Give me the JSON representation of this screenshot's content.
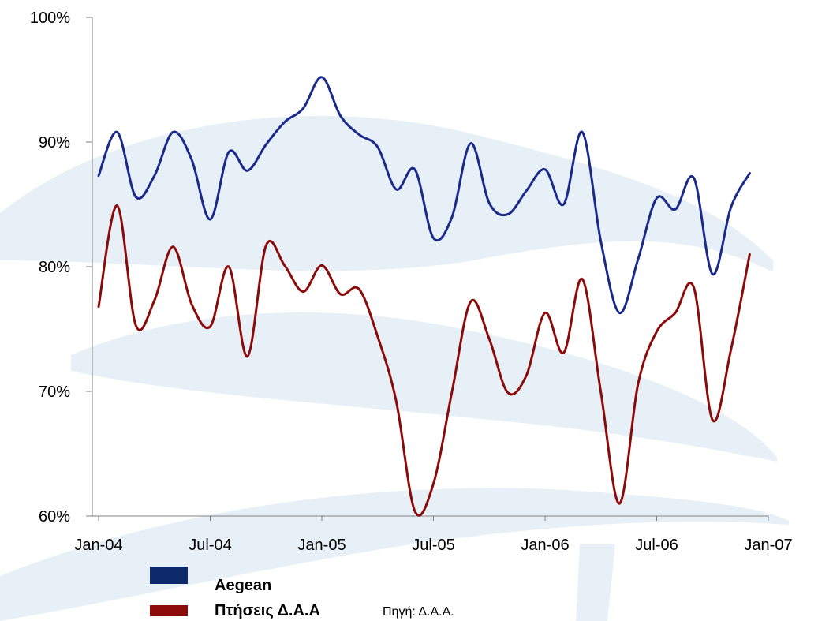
{
  "chart_data": {
    "type": "line",
    "x": [
      "Jan-04",
      "Feb-04",
      "Mar-04",
      "Apr-04",
      "May-04",
      "Jun-04",
      "Jul-04",
      "Aug-04",
      "Sep-04",
      "Oct-04",
      "Nov-04",
      "Dec-04",
      "Jan-05",
      "Feb-05",
      "Mar-05",
      "Apr-05",
      "May-05",
      "Jun-05",
      "Jul-05",
      "Aug-05",
      "Sep-05",
      "Oct-05",
      "Nov-05",
      "Dec-05",
      "Jan-06",
      "Feb-06",
      "Mar-06",
      "Apr-06",
      "May-06",
      "Jun-06",
      "Jul-06",
      "Aug-06",
      "Sep-06",
      "Oct-06",
      "Nov-06",
      "Dec-06",
      "Jan-07"
    ],
    "x_ticks": [
      "Jan-04",
      "Jul-04",
      "Jan-05",
      "Jul-05",
      "Jan-06",
      "Jul-06",
      "Jan-07"
    ],
    "y_ticks": [
      "60%",
      "70%",
      "80%",
      "90%",
      "100%"
    ],
    "ylim": [
      60,
      100
    ],
    "series": [
      {
        "name": "Aegean",
        "color": "#1a2a8c",
        "values": [
          87.3,
          90.8,
          85.6,
          87.3,
          90.8,
          88.6,
          83.8,
          89.2,
          87.7,
          89.8,
          91.6,
          92.7,
          95.2,
          92.1,
          90.6,
          89.6,
          86.2,
          87.8,
          82.3,
          84.0,
          89.9,
          85.1,
          84.2,
          86.1,
          87.8,
          85.0,
          90.8,
          82.0,
          76.3,
          80.6,
          85.5,
          84.6,
          87.1,
          79.4,
          84.8,
          87.5,
          87.5
        ]
      },
      {
        "name": "Πτήσεις Δ.Α.Α",
        "color": "#8b0a0a",
        "values": [
          76.8,
          84.9,
          75.3,
          77.3,
          81.6,
          77.0,
          75.2,
          80.0,
          72.8,
          81.7,
          80.1,
          78.0,
          80.1,
          77.8,
          78.2,
          74.4,
          69.2,
          60.4,
          62.6,
          70.0,
          77.2,
          74.2,
          69.9,
          71.3,
          76.3,
          73.1,
          79.0,
          69.9,
          61.0,
          70.6,
          74.8,
          76.3,
          78.3,
          67.7,
          73.4,
          81.0,
          81.0
        ]
      }
    ]
  },
  "legend": {
    "items": [
      {
        "label": "Aegean",
        "color": "#0d2b6b"
      },
      {
        "label": "Πτήσεις Δ.Α.Α",
        "color": "#8b0a0a"
      }
    ],
    "source_note": "Πηγή: Δ.Α.Α."
  }
}
